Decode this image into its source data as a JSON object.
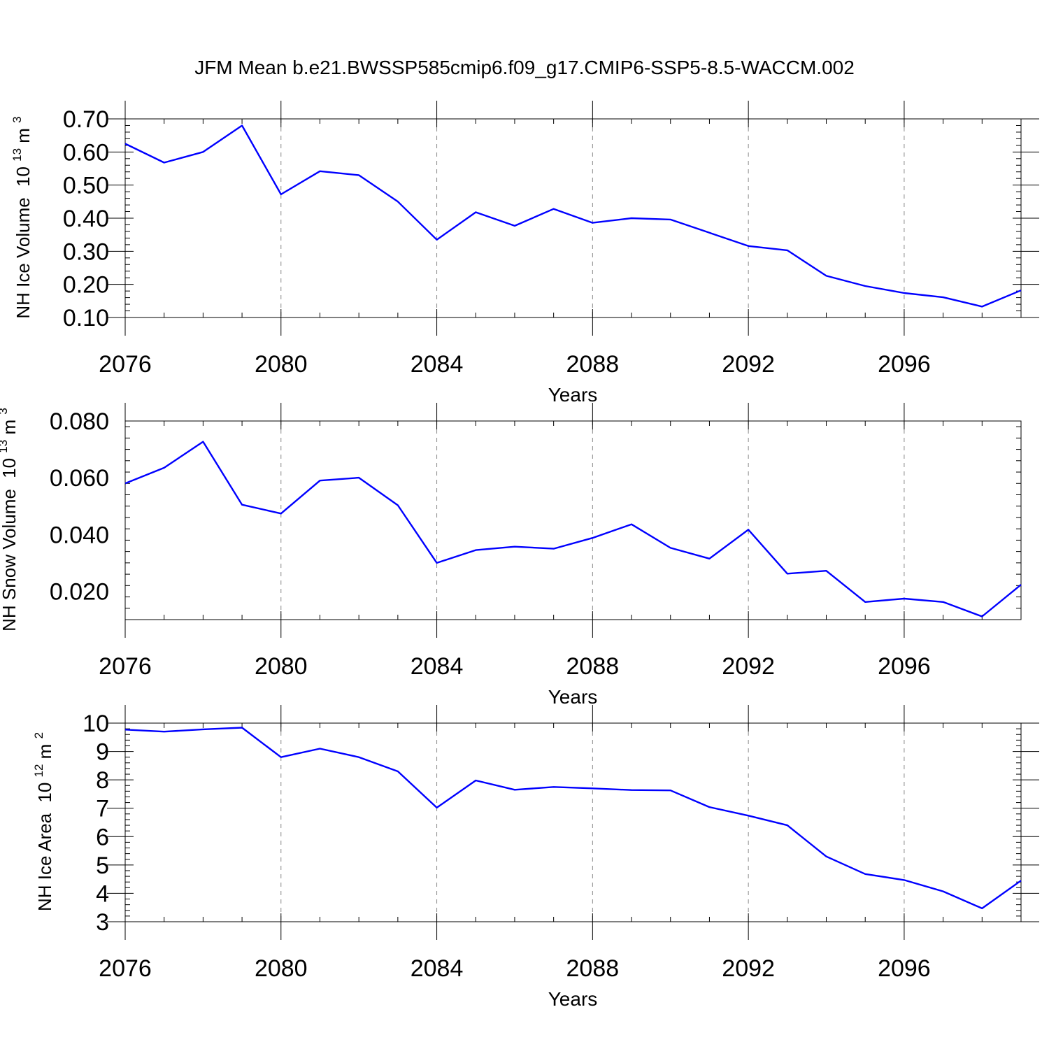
{
  "figure_title": "JFM Mean b.e21.BWSSP585cmip6.f09_g17.CMIP6-SSP5-8.5-WACCM.002",
  "chart_data": [
    {
      "type": "line",
      "title": "",
      "xlabel": "Years",
      "ylabel": "NH Ice Volume",
      "ylabel_unit": "10",
      "ylabel_unit_exp": "13",
      "ylabel_unit_tail": " m",
      "ylabel_unit_tail_exp": "3",
      "xlim": [
        2076,
        2099
      ],
      "ylim": [
        0.1,
        0.7
      ],
      "grid": "vertical dashed at major x ticks",
      "x_ticks": [
        2076,
        2080,
        2084,
        2088,
        2092,
        2096
      ],
      "x_tick_labels": [
        "2076",
        "2080",
        "2084",
        "2088",
        "2092",
        "2096"
      ],
      "y_ticks": [
        0.1,
        0.2,
        0.3,
        0.4,
        0.5,
        0.6,
        0.7
      ],
      "y_tick_labels": [
        "0.10",
        "0.20",
        "0.30",
        "0.40",
        "0.50",
        "0.60",
        "0.70"
      ],
      "series": [
        {
          "name": "NH Ice Volume",
          "color": "#0000ff",
          "x": [
            2076,
            2077,
            2078,
            2079,
            2080,
            2081,
            2082,
            2083,
            2084,
            2085,
            2086,
            2087,
            2088,
            2089,
            2090,
            2091,
            2092,
            2093,
            2094,
            2095,
            2096,
            2097,
            2098,
            2099
          ],
          "values": [
            0.625,
            0.568,
            0.6,
            0.68,
            0.472,
            0.542,
            0.53,
            0.45,
            0.335,
            0.418,
            0.377,
            0.428,
            0.386,
            0.4,
            0.396,
            0.356,
            0.316,
            0.303,
            0.226,
            0.195,
            0.174,
            0.161,
            0.133,
            0.182
          ]
        }
      ]
    },
    {
      "type": "line",
      "title": "",
      "xlabel": "Years",
      "ylabel": "NH Snow Volume",
      "ylabel_unit": "10",
      "ylabel_unit_exp": "13",
      "ylabel_unit_tail": " m",
      "ylabel_unit_tail_exp": "3",
      "xlim": [
        2076,
        2099
      ],
      "ylim": [
        0.01,
        0.08
      ],
      "grid": "vertical dashed at major x ticks",
      "x_ticks": [
        2076,
        2080,
        2084,
        2088,
        2092,
        2096
      ],
      "x_tick_labels": [
        "2076",
        "2080",
        "2084",
        "2088",
        "2092",
        "2096"
      ],
      "y_ticks": [
        0.02,
        0.04,
        0.06,
        0.08
      ],
      "y_tick_labels": [
        "0.020",
        "0.040",
        "0.060",
        "0.080"
      ],
      "series": [
        {
          "name": "NH Snow Volume",
          "color": "#0000ff",
          "x": [
            2076,
            2077,
            2078,
            2079,
            2080,
            2081,
            2082,
            2083,
            2084,
            2085,
            2086,
            2087,
            2088,
            2089,
            2090,
            2091,
            2092,
            2093,
            2094,
            2095,
            2096,
            2097,
            2098,
            2099
          ],
          "values": [
            0.058,
            0.0635,
            0.0727,
            0.0505,
            0.0474,
            0.059,
            0.06,
            0.0503,
            0.03,
            0.0345,
            0.0357,
            0.035,
            0.0388,
            0.0436,
            0.0353,
            0.0315,
            0.0417,
            0.0262,
            0.0272,
            0.0162,
            0.0174,
            0.0162,
            0.0111,
            0.0223
          ]
        }
      ]
    },
    {
      "type": "line",
      "title": "",
      "xlabel": "Years",
      "ylabel": "NH Ice Area",
      "ylabel_unit": "10",
      "ylabel_unit_exp": "12",
      "ylabel_unit_tail": " m",
      "ylabel_unit_tail_exp": "2",
      "xlim": [
        2076,
        2099
      ],
      "ylim": [
        3,
        10
      ],
      "grid": "vertical dashed at major x ticks",
      "x_ticks": [
        2076,
        2080,
        2084,
        2088,
        2092,
        2096
      ],
      "x_tick_labels": [
        "2076",
        "2080",
        "2084",
        "2088",
        "2092",
        "2096"
      ],
      "y_ticks": [
        3,
        4,
        5,
        6,
        7,
        8,
        9,
        10
      ],
      "y_tick_labels": [
        "3",
        "4",
        "5",
        "6",
        "7",
        "8",
        "9",
        "10"
      ],
      "series": [
        {
          "name": "NH Ice Area",
          "color": "#0000ff",
          "x": [
            2076,
            2077,
            2078,
            2079,
            2080,
            2081,
            2082,
            2083,
            2084,
            2085,
            2086,
            2087,
            2088,
            2089,
            2090,
            2091,
            2092,
            2093,
            2094,
            2095,
            2096,
            2097,
            2098,
            2099
          ],
          "values": [
            9.77,
            9.7,
            9.78,
            9.84,
            8.8,
            9.1,
            8.8,
            8.3,
            7.02,
            7.98,
            7.65,
            7.75,
            7.7,
            7.64,
            7.63,
            7.04,
            6.74,
            6.4,
            5.3,
            4.68,
            4.47,
            4.07,
            3.47,
            4.45
          ]
        }
      ]
    }
  ]
}
